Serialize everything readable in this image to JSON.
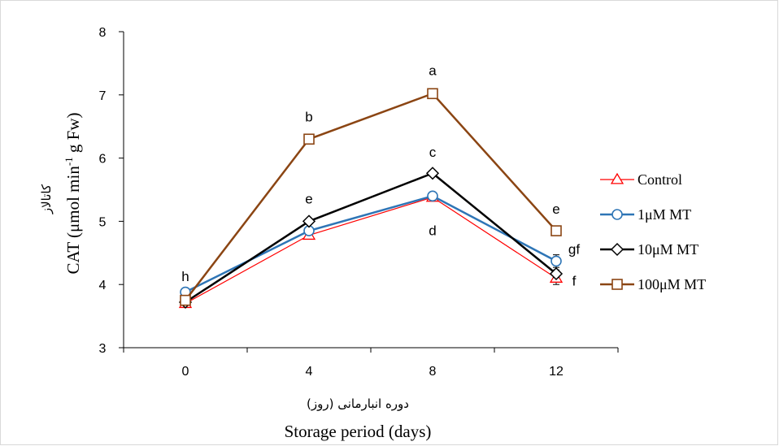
{
  "chart_data": {
    "type": "line",
    "x": [
      0,
      4,
      8,
      12
    ],
    "xlim": [
      -2,
      14
    ],
    "ylim": [
      3,
      8
    ],
    "yticks": [
      3,
      4,
      5,
      6,
      7,
      8
    ],
    "xlabel_en": "Storage period  (days)",
    "xlabel_fa": "دوره انبارمانی  (روز)",
    "ylabel_fa": "کاتالاز",
    "ylabel_prefix": "CAT (μmol min",
    "ylabel_sup": "-1",
    "ylabel_suffix": " g Fw)",
    "grid": false,
    "legend_position": "right",
    "series": [
      {
        "name": "Control",
        "values": [
          3.7,
          4.78,
          5.38,
          4.1
        ],
        "errors": [
          0.03,
          0.05,
          0.05,
          0.1
        ],
        "color": "#ff0000",
        "marker": "triangle",
        "width": 1.2
      },
      {
        "name": "1μM MT",
        "values": [
          3.88,
          4.85,
          5.4,
          4.37
        ],
        "errors": [
          0.03,
          0.06,
          0.05,
          0.1
        ],
        "color": "#2e75b6",
        "marker": "circle",
        "width": 2.5
      },
      {
        "name": "10μM MT",
        "values": [
          3.72,
          5.0,
          5.76,
          4.17
        ],
        "errors": [
          0.03,
          0.04,
          0.04,
          0.06
        ],
        "color": "#000000",
        "marker": "diamond",
        "width": 2.5
      },
      {
        "name": "100μM MT",
        "values": [
          3.75,
          6.3,
          7.02,
          4.85
        ],
        "errors": [
          0.03,
          0.04,
          0.06,
          0.04
        ],
        "color": "#8b4513",
        "marker": "square",
        "width": 2.5
      }
    ],
    "annotations": [
      {
        "text": "h",
        "x": 0,
        "y": 4.13
      },
      {
        "text": "b",
        "x": 4,
        "y": 6.66
      },
      {
        "text": "e",
        "x": 4,
        "y": 5.36
      },
      {
        "text": "a",
        "x": 8,
        "y": 7.39
      },
      {
        "text": "c",
        "x": 8,
        "y": 6.1
      },
      {
        "text": "d",
        "x": 8,
        "y": 4.86
      },
      {
        "text": "e",
        "x": 12,
        "y": 5.2
      },
      {
        "text": "gf",
        "x": 12,
        "y": 4.56
      },
      {
        "text": "f",
        "x": 12,
        "y": 4.06
      }
    ]
  }
}
